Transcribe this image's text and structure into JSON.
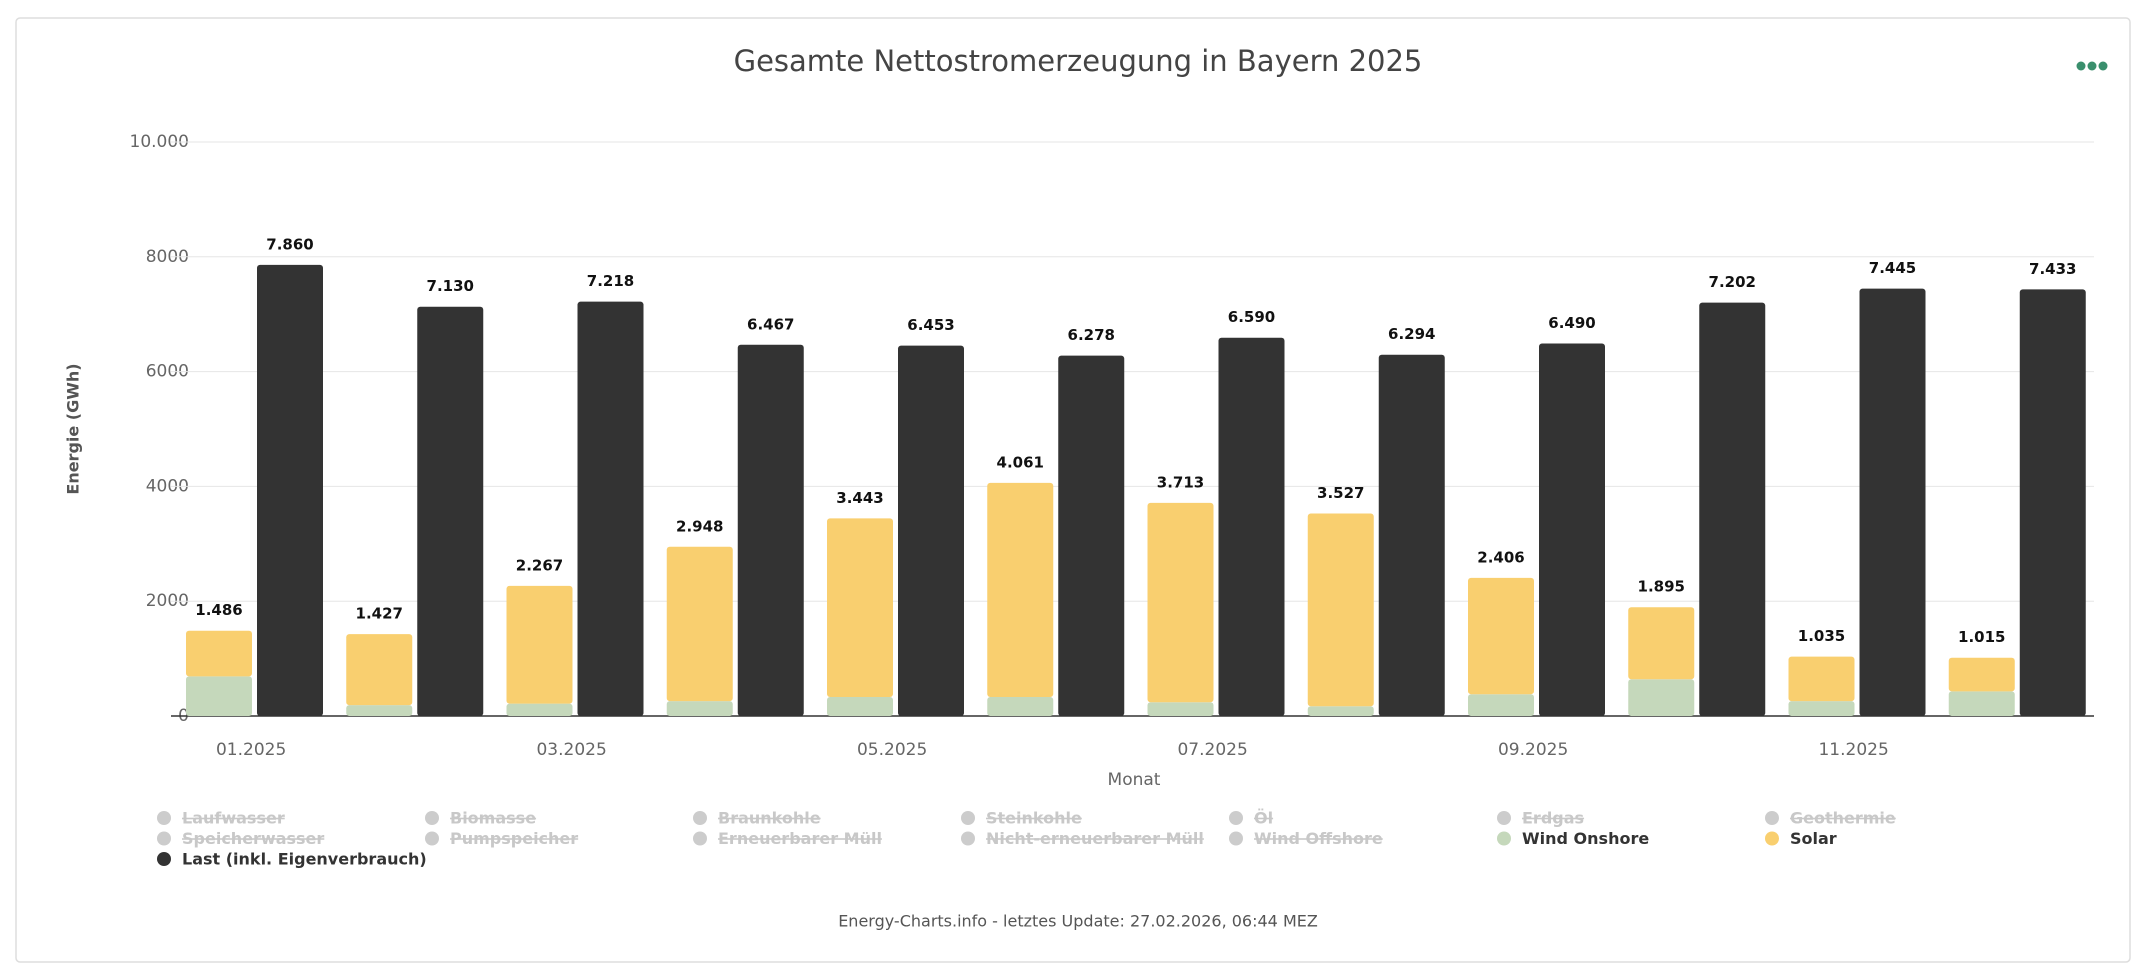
{
  "chart_data": {
    "type": "stacked_bar",
    "title": "Gesamte Nettostromerzeugung in Bayern 2025",
    "x_label": "Monat",
    "y_label": "Energie (GWh)",
    "footer": "Energy-Charts.info - letztes Update: 27.02.2026, 06:44 MEZ",
    "categories": [
      "01.2025",
      null,
      "03.2025",
      null,
      "05.2025",
      null,
      "07.2025",
      null,
      "09.2025",
      null,
      "11.2025",
      null
    ],
    "ylim": [
      0,
      10000
    ],
    "yticks": [
      0,
      2000,
      4000,
      6000,
      8000,
      {
        "value": 10000,
        "label": "10.000"
      }
    ],
    "grid": true,
    "hidden_series": [
      {
        "name": "Laufwasser"
      },
      {
        "name": "Biomasse"
      },
      {
        "name": "Braunkohle"
      },
      {
        "name": "Steinkohle"
      },
      {
        "name": "Öl"
      },
      {
        "name": "Erdgas"
      },
      {
        "name": "Geothermie"
      },
      {
        "name": "Speicherwasser"
      },
      {
        "name": "Pumpspeicher"
      },
      {
        "name": "Erneuerbarer Müll"
      },
      {
        "name": "Nicht-erneuerbarer Müll"
      },
      {
        "name": "Wind Offshore"
      }
    ],
    "series": [
      {
        "name": "Wind Onshore",
        "color": "#c5d8bb",
        "stack": "gen",
        "values": [
          690,
          190,
          215,
          260,
          330,
          330,
          240,
          170,
          380,
          640,
          260,
          430
        ]
      },
      {
        "name": "Solar",
        "color": "#f9cf6f",
        "stack": "gen",
        "values": [
          796,
          1237,
          2052,
          2688,
          3113,
          3731,
          3473,
          3357,
          2026,
          1255,
          775,
          585
        ]
      },
      {
        "name": "Last (inkl. Eigenverbrauch)",
        "color": "#333333",
        "stack": "load",
        "values": [
          7860,
          7130,
          7218,
          6467,
          6453,
          6278,
          6590,
          6294,
          6490,
          7202,
          7445,
          7433
        ],
        "value_labels": [
          "7.860",
          "7.130",
          "7.218",
          "6.467",
          "6.453",
          "6.278",
          "6.590",
          "6.294",
          "6.490",
          "7.202",
          "7.445",
          "7.433"
        ]
      }
    ],
    "stack_total_labels": [
      "1.486",
      "1.427",
      "2.267",
      "2.948",
      "3.443",
      "4.061",
      "3.713",
      "3.527",
      "2.406",
      "1.895",
      "1.035",
      "1.015"
    ]
  }
}
